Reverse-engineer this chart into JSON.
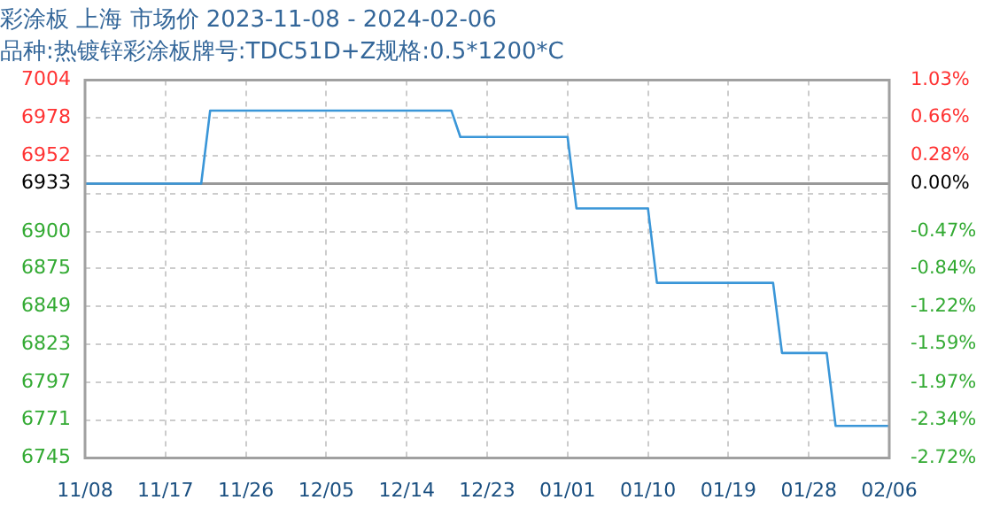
{
  "chart_data": {
    "type": "line",
    "title": "彩涂板 上海 市场价 2023-11-08 - 2024-02-06",
    "subtitle": "品种:热镀锌彩涂板牌号:TDC51D+Z规格:0.5*1200*C",
    "x": [
      "2023-11-08",
      "2023-11-21",
      "2023-11-22",
      "2023-12-19",
      "2023-12-20",
      "2024-01-01",
      "2024-01-02",
      "2024-01-10",
      "2024-01-11",
      "2024-01-24",
      "2024-01-25",
      "2024-01-30",
      "2024-01-31",
      "2024-02-06"
    ],
    "series": [
      {
        "color": "#3a96d8",
        "values": [
          6933,
          6933,
          6983,
          6983,
          6965,
          6965,
          6916,
          6916,
          6865,
          6865,
          6817,
          6817,
          6767,
          6767
        ]
      }
    ],
    "xlim": [
      "2023-11-08",
      "2024-02-06"
    ],
    "xticks": [
      {
        "value": "2023-11-08",
        "label": "11/08"
      },
      {
        "value": "2023-11-17",
        "label": "11/17"
      },
      {
        "value": "2023-11-26",
        "label": "11/26"
      },
      {
        "value": "2023-12-05",
        "label": "12/05"
      },
      {
        "value": "2023-12-14",
        "label": "12/14"
      },
      {
        "value": "2023-12-23",
        "label": "12/23"
      },
      {
        "value": "2024-01-01",
        "label": "01/01"
      },
      {
        "value": "2024-01-10",
        "label": "01/10"
      },
      {
        "value": "2024-01-19",
        "label": "01/19"
      },
      {
        "value": "2024-01-28",
        "label": "01/28"
      },
      {
        "value": "2024-02-06",
        "label": "02/06"
      }
    ],
    "ylim": [
      6745,
      7004
    ],
    "yticks": [
      6745,
      6771,
      6797,
      6823,
      6849,
      6875,
      6900,
      {
        "value": 6926,
        "label": null
      },
      6933,
      6952,
      6978,
      7004
    ],
    "y2lim": [
      -2.72,
      1.03
    ],
    "y2ticks": [
      {
        "value": -2.72,
        "label": "-2.72%"
      },
      {
        "value": -2.34,
        "label": "-2.34%"
      },
      {
        "value": -1.97,
        "label": "-1.97%"
      },
      {
        "value": -1.59,
        "label": "-1.59%"
      },
      {
        "value": -1.22,
        "label": "-1.22%"
      },
      {
        "value": -0.84,
        "label": "-0.84%"
      },
      {
        "value": -0.47,
        "label": "-0.47%"
      },
      {
        "value": 0,
        "label": "0.00%"
      },
      {
        "value": 0.28,
        "label": "0.28%"
      },
      {
        "value": 0.66,
        "label": "0.66%"
      },
      {
        "value": 1.03,
        "label": "1.03%"
      }
    ],
    "ref_lines": [
      {
        "axis": "y",
        "value": 6933,
        "color": "#999999"
      }
    ],
    "grid": true,
    "legend": false,
    "marker": "none",
    "line_style": "solid"
  }
}
